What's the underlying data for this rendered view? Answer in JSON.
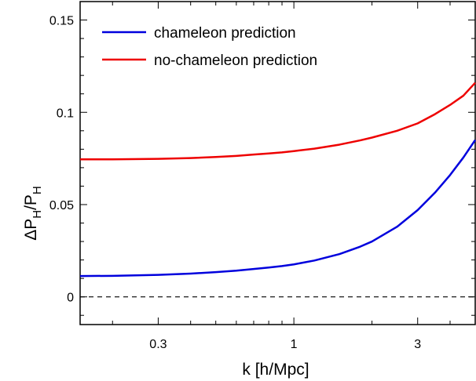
{
  "chart_data": {
    "type": "line",
    "title": "",
    "xlabel": "k [h/Mpc]",
    "ylabel": {
      "base1": "ΔP",
      "sub1": "H",
      "mid": "/P",
      "sub2": "H"
    },
    "xscale": "log",
    "xlim": [
      0.15,
      5.0
    ],
    "ylim": [
      -0.015,
      0.16
    ],
    "xticks": [
      {
        "value": 0.3,
        "label": "0.3"
      },
      {
        "value": 1,
        "label": "1"
      },
      {
        "value": 3,
        "label": "3"
      }
    ],
    "yticks": [
      {
        "value": 0,
        "label": "0"
      },
      {
        "value": 0.05,
        "label": "0.05"
      },
      {
        "value": 0.1,
        "label": "0.1"
      },
      {
        "value": 0.15,
        "label": "0.15"
      }
    ],
    "grid": false,
    "legend_position": "top-left",
    "reference_line": {
      "y": 0,
      "style": "dashed"
    },
    "series": [
      {
        "name": "chameleon prediction",
        "color": "#0000dd",
        "points": [
          [
            0.15,
            0.0113
          ],
          [
            0.2,
            0.0114
          ],
          [
            0.3,
            0.0119
          ],
          [
            0.4,
            0.0126
          ],
          [
            0.5,
            0.0134
          ],
          [
            0.6,
            0.0142
          ],
          [
            0.7,
            0.0151
          ],
          [
            0.8,
            0.0159
          ],
          [
            0.9,
            0.0167
          ],
          [
            1.0,
            0.0176
          ],
          [
            1.2,
            0.0197
          ],
          [
            1.5,
            0.0232
          ],
          [
            1.8,
            0.0272
          ],
          [
            2.0,
            0.03
          ],
          [
            2.5,
            0.038
          ],
          [
            3.0,
            0.047
          ],
          [
            3.5,
            0.0565
          ],
          [
            4.0,
            0.066
          ],
          [
            4.5,
            0.0755
          ],
          [
            5.0,
            0.085
          ]
        ]
      },
      {
        "name": "no-chameleon prediction",
        "color": "#ee0000",
        "points": [
          [
            0.15,
            0.0745
          ],
          [
            0.2,
            0.0745
          ],
          [
            0.3,
            0.0748
          ],
          [
            0.4,
            0.0752
          ],
          [
            0.5,
            0.0758
          ],
          [
            0.6,
            0.0764
          ],
          [
            0.7,
            0.0771
          ],
          [
            0.8,
            0.0777
          ],
          [
            0.9,
            0.0783
          ],
          [
            1.0,
            0.079
          ],
          [
            1.2,
            0.0803
          ],
          [
            1.5,
            0.0825
          ],
          [
            1.8,
            0.0848
          ],
          [
            2.0,
            0.0863
          ],
          [
            2.5,
            0.09
          ],
          [
            3.0,
            0.094
          ],
          [
            3.5,
            0.099
          ],
          [
            4.0,
            0.104
          ],
          [
            4.5,
            0.109
          ],
          [
            5.0,
            0.116
          ]
        ]
      }
    ]
  }
}
